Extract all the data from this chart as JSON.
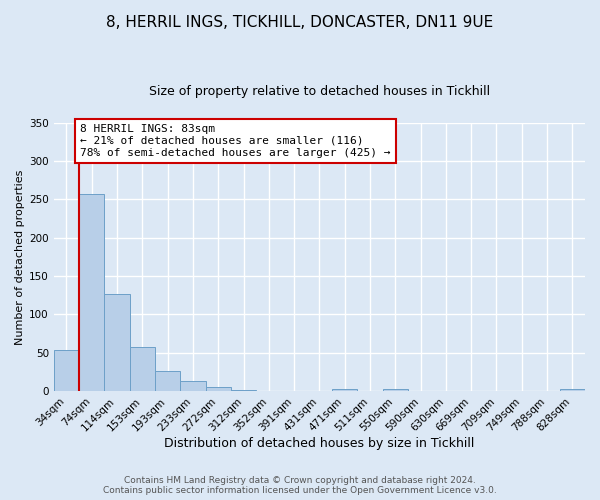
{
  "title": "8, HERRIL INGS, TICKHILL, DONCASTER, DN11 9UE",
  "subtitle": "Size of property relative to detached houses in Tickhill",
  "xlabel": "Distribution of detached houses by size in Tickhill",
  "ylabel": "Number of detached properties",
  "bar_labels": [
    "34sqm",
    "74sqm",
    "114sqm",
    "153sqm",
    "193sqm",
    "233sqm",
    "272sqm",
    "312sqm",
    "352sqm",
    "391sqm",
    "431sqm",
    "471sqm",
    "511sqm",
    "550sqm",
    "590sqm",
    "630sqm",
    "669sqm",
    "709sqm",
    "749sqm",
    "788sqm",
    "828sqm"
  ],
  "bar_values": [
    54,
    257,
    127,
    57,
    26,
    13,
    5,
    1,
    0,
    0,
    0,
    3,
    0,
    3,
    0,
    0,
    0,
    0,
    0,
    0,
    3
  ],
  "bar_color": "#b8cfe8",
  "bar_edge_color": "#6da0c8",
  "ylim": [
    0,
    350
  ],
  "yticks": [
    0,
    50,
    100,
    150,
    200,
    250,
    300,
    350
  ],
  "red_line_x": 0.5,
  "annotation_title": "8 HERRIL INGS: 83sqm",
  "annotation_line1": "← 21% of detached houses are smaller (116)",
  "annotation_line2": "78% of semi-detached houses are larger (425) →",
  "marker_color": "#cc0000",
  "annotation_box_edge": "#cc0000",
  "footer1": "Contains HM Land Registry data © Crown copyright and database right 2024.",
  "footer2": "Contains public sector information licensed under the Open Government Licence v3.0.",
  "fig_bg_color": "#dce8f5",
  "plot_bg_color": "#dce8f5",
  "grid_color": "#ffffff",
  "title_fontsize": 11,
  "subtitle_fontsize": 9,
  "xlabel_fontsize": 9,
  "ylabel_fontsize": 8,
  "tick_fontsize": 7.5,
  "annotation_fontsize": 8,
  "footer_fontsize": 6.5
}
